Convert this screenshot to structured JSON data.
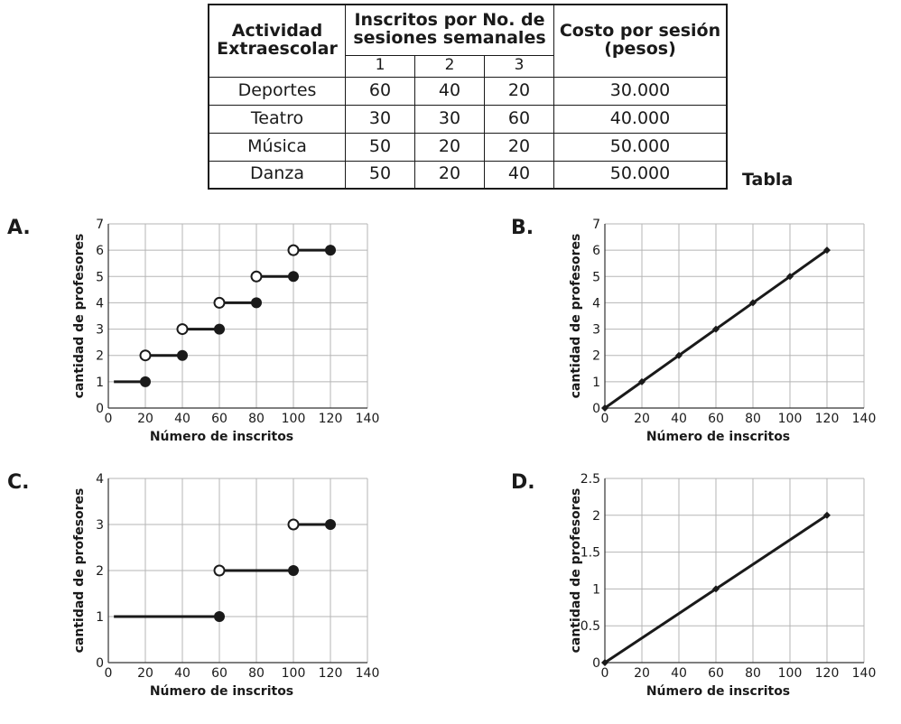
{
  "table": {
    "headers": {
      "activity": "Actividad Extraescolar",
      "enrolled": "Inscritos por No. de sesiones semanales",
      "cost": "Costo por sesión (pesos)"
    },
    "session_labels": [
      "1",
      "2",
      "3"
    ],
    "rows": [
      {
        "name": "Deportes",
        "values": [
          "60",
          "40",
          "20"
        ],
        "cost": "30.000"
      },
      {
        "name": "Teatro",
        "values": [
          "30",
          "30",
          "60"
        ],
        "cost": "40.000"
      },
      {
        "name": "Música",
        "values": [
          "50",
          "20",
          "20"
        ],
        "cost": "50.000"
      },
      {
        "name": "Danza",
        "values": [
          "50",
          "20",
          "40"
        ],
        "cost": "50.000"
      }
    ],
    "caption": "Tabla"
  },
  "option_labels": [
    "A.",
    "B.",
    "C.",
    "D."
  ],
  "chart_data": [
    {
      "option": "A.",
      "type": "line",
      "style": "step",
      "xlabel": "Número de inscritos",
      "ylabel": "cantidad de profesores",
      "xlim": [
        0,
        140
      ],
      "ylim": [
        0,
        7
      ],
      "xticks": [
        "0",
        "20",
        "40",
        "60",
        "80",
        "100",
        "120",
        "140"
      ],
      "yticks": [
        "0",
        "1",
        "2",
        "3",
        "4",
        "5",
        "6",
        "7"
      ],
      "grid": true,
      "segments": [
        {
          "x": [
            3,
            20
          ],
          "y": 1,
          "start": "none",
          "end": "closed"
        },
        {
          "x": [
            20,
            40
          ],
          "y": 2,
          "start": "open",
          "end": "closed"
        },
        {
          "x": [
            40,
            60
          ],
          "y": 3,
          "start": "open",
          "end": "closed"
        },
        {
          "x": [
            60,
            80
          ],
          "y": 4,
          "start": "open",
          "end": "closed"
        },
        {
          "x": [
            80,
            100
          ],
          "y": 5,
          "start": "open",
          "end": "closed"
        },
        {
          "x": [
            100,
            120
          ],
          "y": 6,
          "start": "open",
          "end": "closed"
        }
      ]
    },
    {
      "option": "B.",
      "type": "line",
      "xlabel": "Número de inscritos",
      "ylabel": "cantidad de profesores",
      "xlim": [
        0,
        140
      ],
      "ylim": [
        0,
        7
      ],
      "xticks": [
        "0",
        "20",
        "40",
        "60",
        "80",
        "100",
        "120",
        "140"
      ],
      "yticks": [
        "0",
        "1",
        "2",
        "3",
        "4",
        "5",
        "6",
        "7"
      ],
      "grid": true,
      "x": [
        0,
        20,
        40,
        60,
        80,
        100,
        120
      ],
      "y": [
        0,
        1,
        2,
        3,
        4,
        5,
        6
      ]
    },
    {
      "option": "C.",
      "type": "line",
      "style": "step",
      "xlabel": "Número de inscritos",
      "ylabel": "cantidad de profesores",
      "xlim": [
        0,
        140
      ],
      "ylim": [
        0,
        4
      ],
      "xticks": [
        "0",
        "20",
        "40",
        "60",
        "80",
        "100",
        "120",
        "140"
      ],
      "yticks": [
        "0",
        "1",
        "2",
        "3",
        "4"
      ],
      "grid": true,
      "segments": [
        {
          "x": [
            3,
            60
          ],
          "y": 1,
          "start": "none",
          "end": "closed"
        },
        {
          "x": [
            60,
            100
          ],
          "y": 2,
          "start": "open",
          "end": "closed"
        },
        {
          "x": [
            100,
            120
          ],
          "y": 3,
          "start": "open",
          "end": "closed"
        }
      ]
    },
    {
      "option": "D.",
      "type": "line",
      "xlabel": "Número de inscritos",
      "ylabel": "cantidad de profesores",
      "xlim": [
        0,
        140
      ],
      "ylim": [
        0,
        2.5
      ],
      "xticks": [
        "0",
        "20",
        "40",
        "60",
        "80",
        "100",
        "120",
        "140"
      ],
      "yticks": [
        "0",
        "0.5",
        "1",
        "1.5",
        "2",
        "2.5"
      ],
      "grid": true,
      "x": [
        0,
        60,
        120
      ],
      "y": [
        0,
        1,
        2
      ]
    }
  ]
}
